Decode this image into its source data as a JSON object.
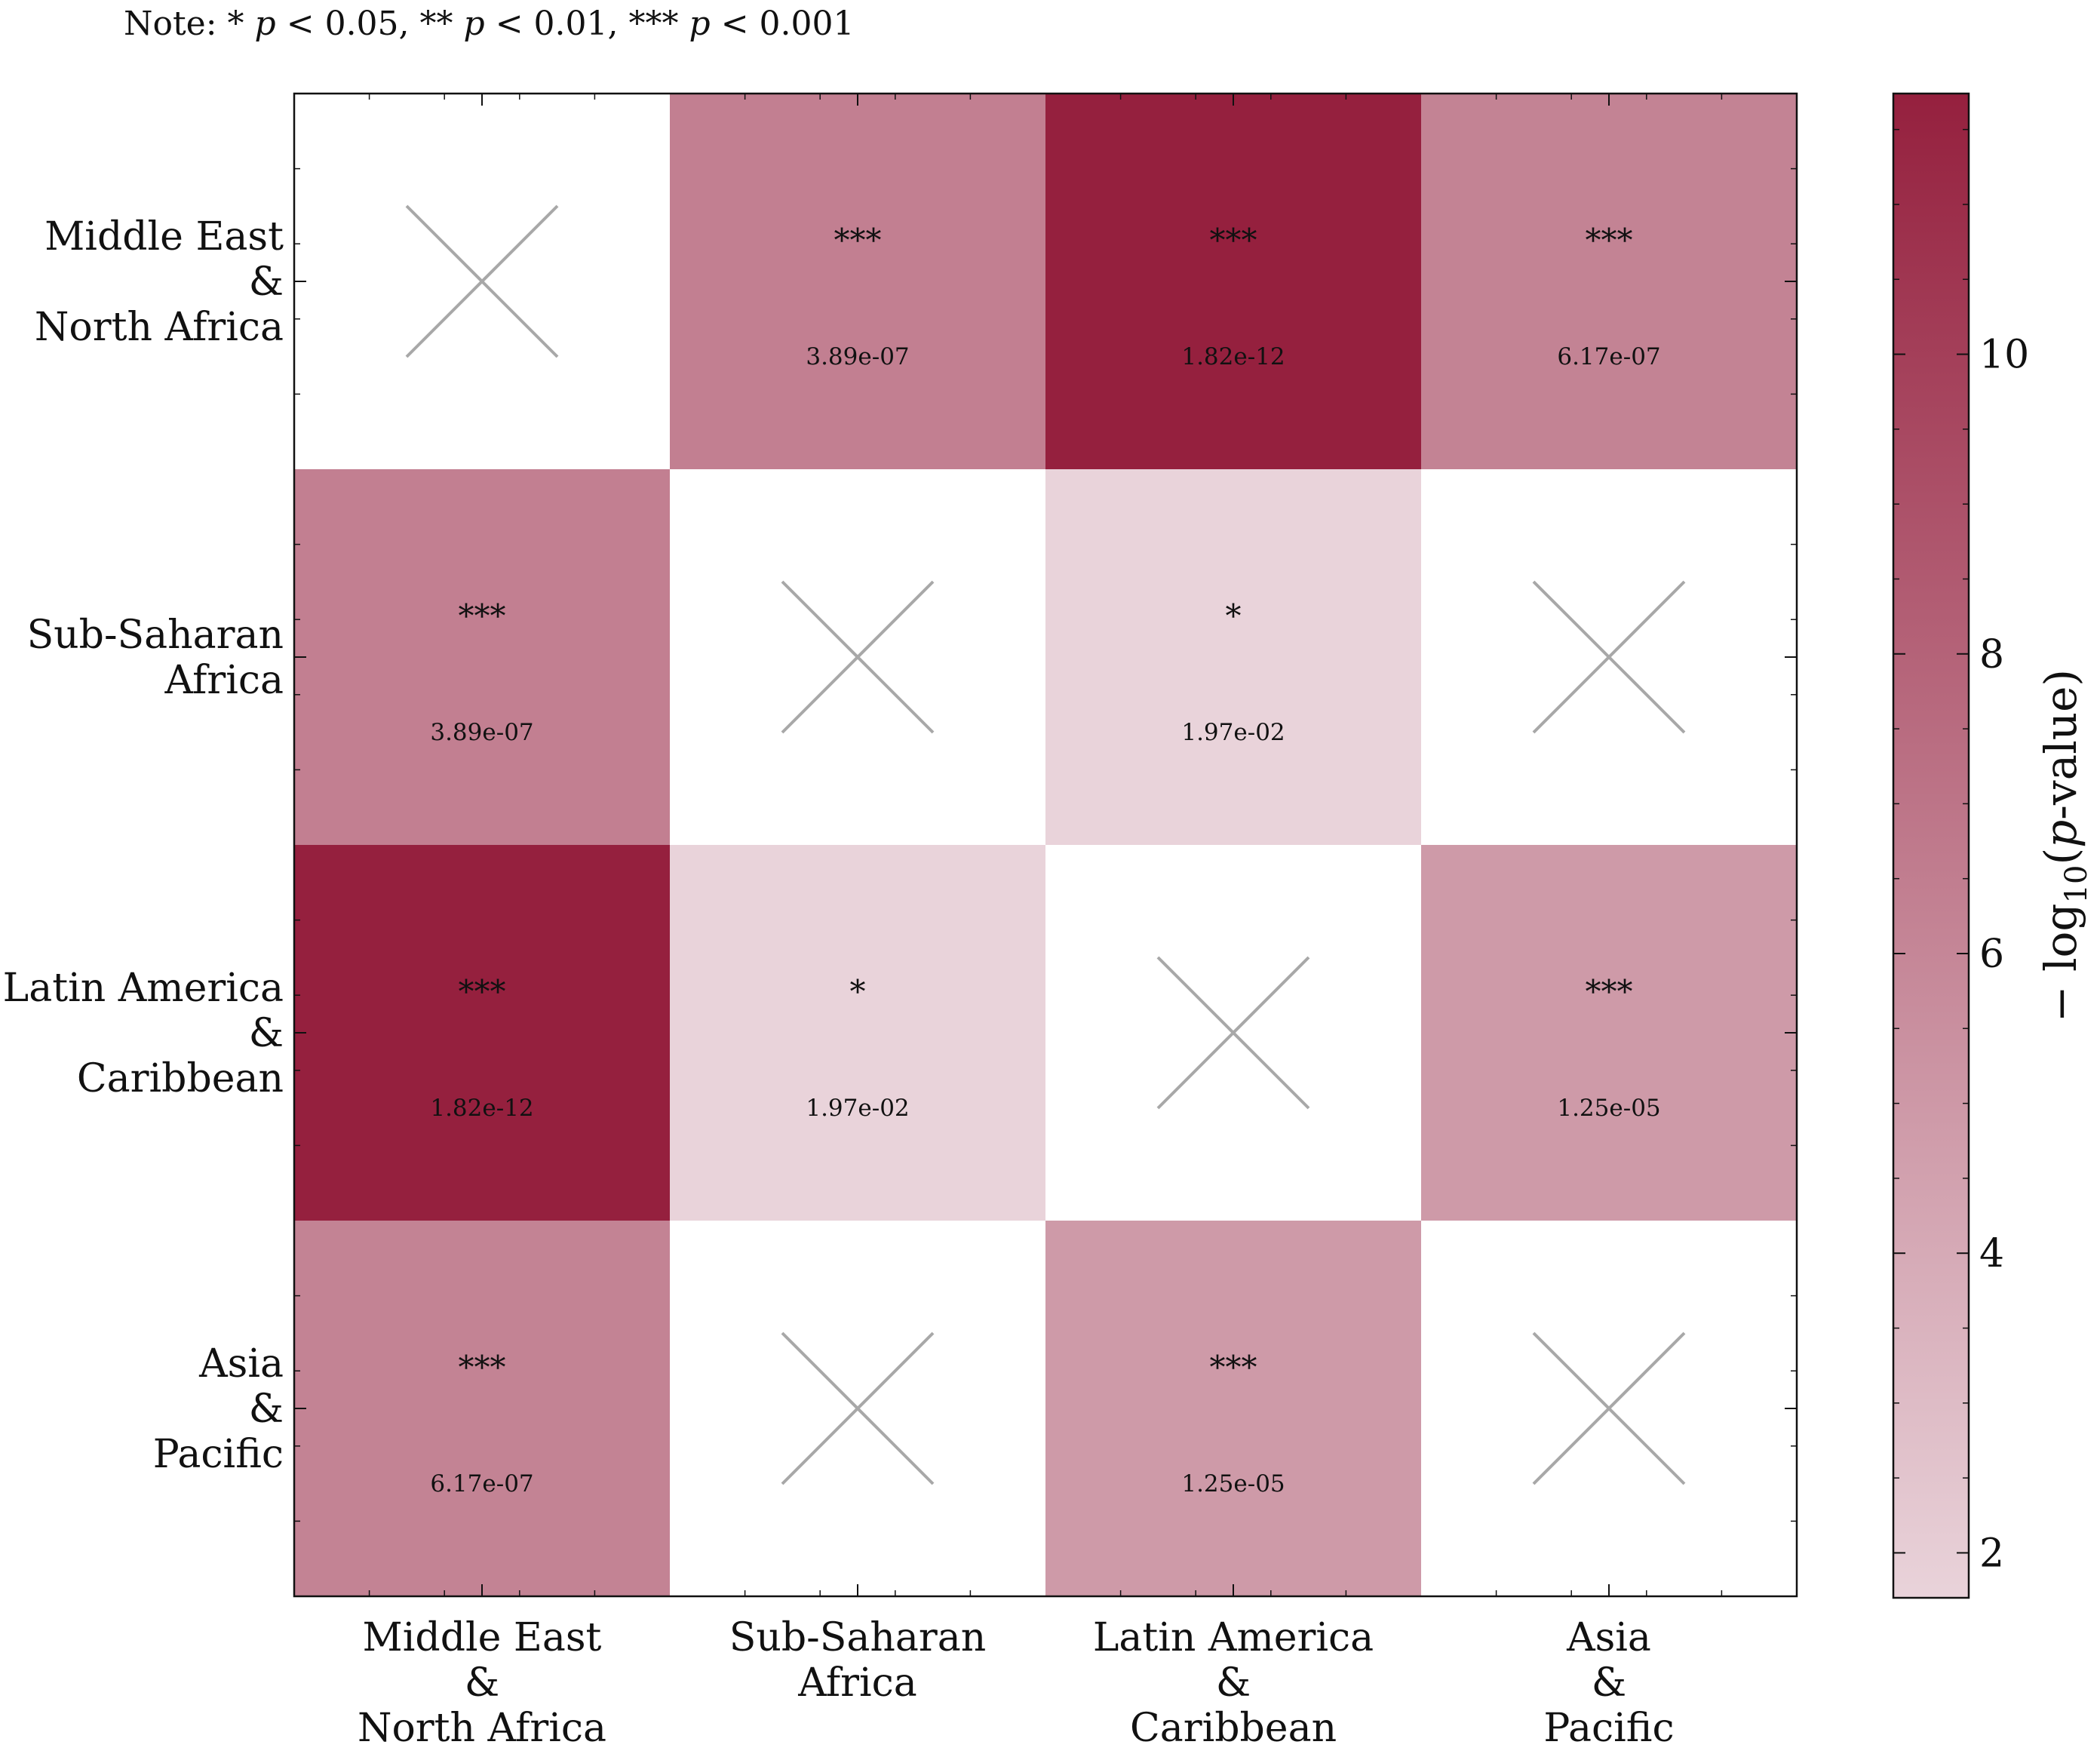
{
  "note": {
    "text": "Note: * p < 0.05, ** p < 0.01, *** p < 0.001",
    "prefix": "Note:",
    "star1": "*",
    "star2": "**",
    "star3": "***",
    "pvar": "p",
    "t1": "< 0.05,",
    "t2": "< 0.01,",
    "t3": "< 0.001"
  },
  "chart_data": {
    "type": "heatmap",
    "title": "",
    "row_labels": [
      [
        "Middle East",
        "&",
        "North Africa"
      ],
      [
        "Sub-Saharan",
        "Africa"
      ],
      [
        "Latin America",
        "&",
        "Caribbean"
      ],
      [
        "Asia",
        "&",
        "Pacific"
      ]
    ],
    "col_labels": [
      [
        "Middle East",
        "&",
        "North Africa"
      ],
      [
        "Sub-Saharan",
        "Africa"
      ],
      [
        "Latin America",
        "&",
        "Caribbean"
      ],
      [
        "Asia",
        "&",
        "Pacific"
      ]
    ],
    "cells": [
      [
        {
          "empty": true
        },
        {
          "stars": "***",
          "label": "3.89e-07",
          "p": 3.89e-07
        },
        {
          "stars": "***",
          "label": "1.82e-12",
          "p": 1.82e-12
        },
        {
          "stars": "***",
          "label": "6.17e-07",
          "p": 6.17e-07
        }
      ],
      [
        {
          "stars": "***",
          "label": "3.89e-07",
          "p": 3.89e-07
        },
        {
          "empty": true
        },
        {
          "stars": "*",
          "label": "1.97e-02",
          "p": 0.0197
        },
        {
          "empty": true
        }
      ],
      [
        {
          "stars": "***",
          "label": "1.82e-12",
          "p": 1.82e-12
        },
        {
          "stars": "*",
          "label": "1.97e-02",
          "p": 0.0197
        },
        {
          "empty": true
        },
        {
          "stars": "***",
          "label": "1.25e-05",
          "p": 1.25e-05
        }
      ],
      [
        {
          "stars": "***",
          "label": "6.17e-07",
          "p": 6.17e-07
        },
        {
          "empty": true
        },
        {
          "stars": "***",
          "label": "1.25e-05",
          "p": 1.25e-05
        },
        {
          "empty": true
        }
      ]
    ],
    "colorbar": {
      "label_prefix": "− log",
      "label_sub": "10",
      "label_open": "(",
      "label_var": "p",
      "label_rest": "-value)",
      "vmin": 1.7,
      "vmax": 11.74,
      "ticks": [
        2,
        4,
        6,
        8,
        10
      ],
      "cmap_low": "#e9d3da",
      "cmap_high": "#95203e"
    },
    "empty_marker_color": "#a8a8a8"
  }
}
